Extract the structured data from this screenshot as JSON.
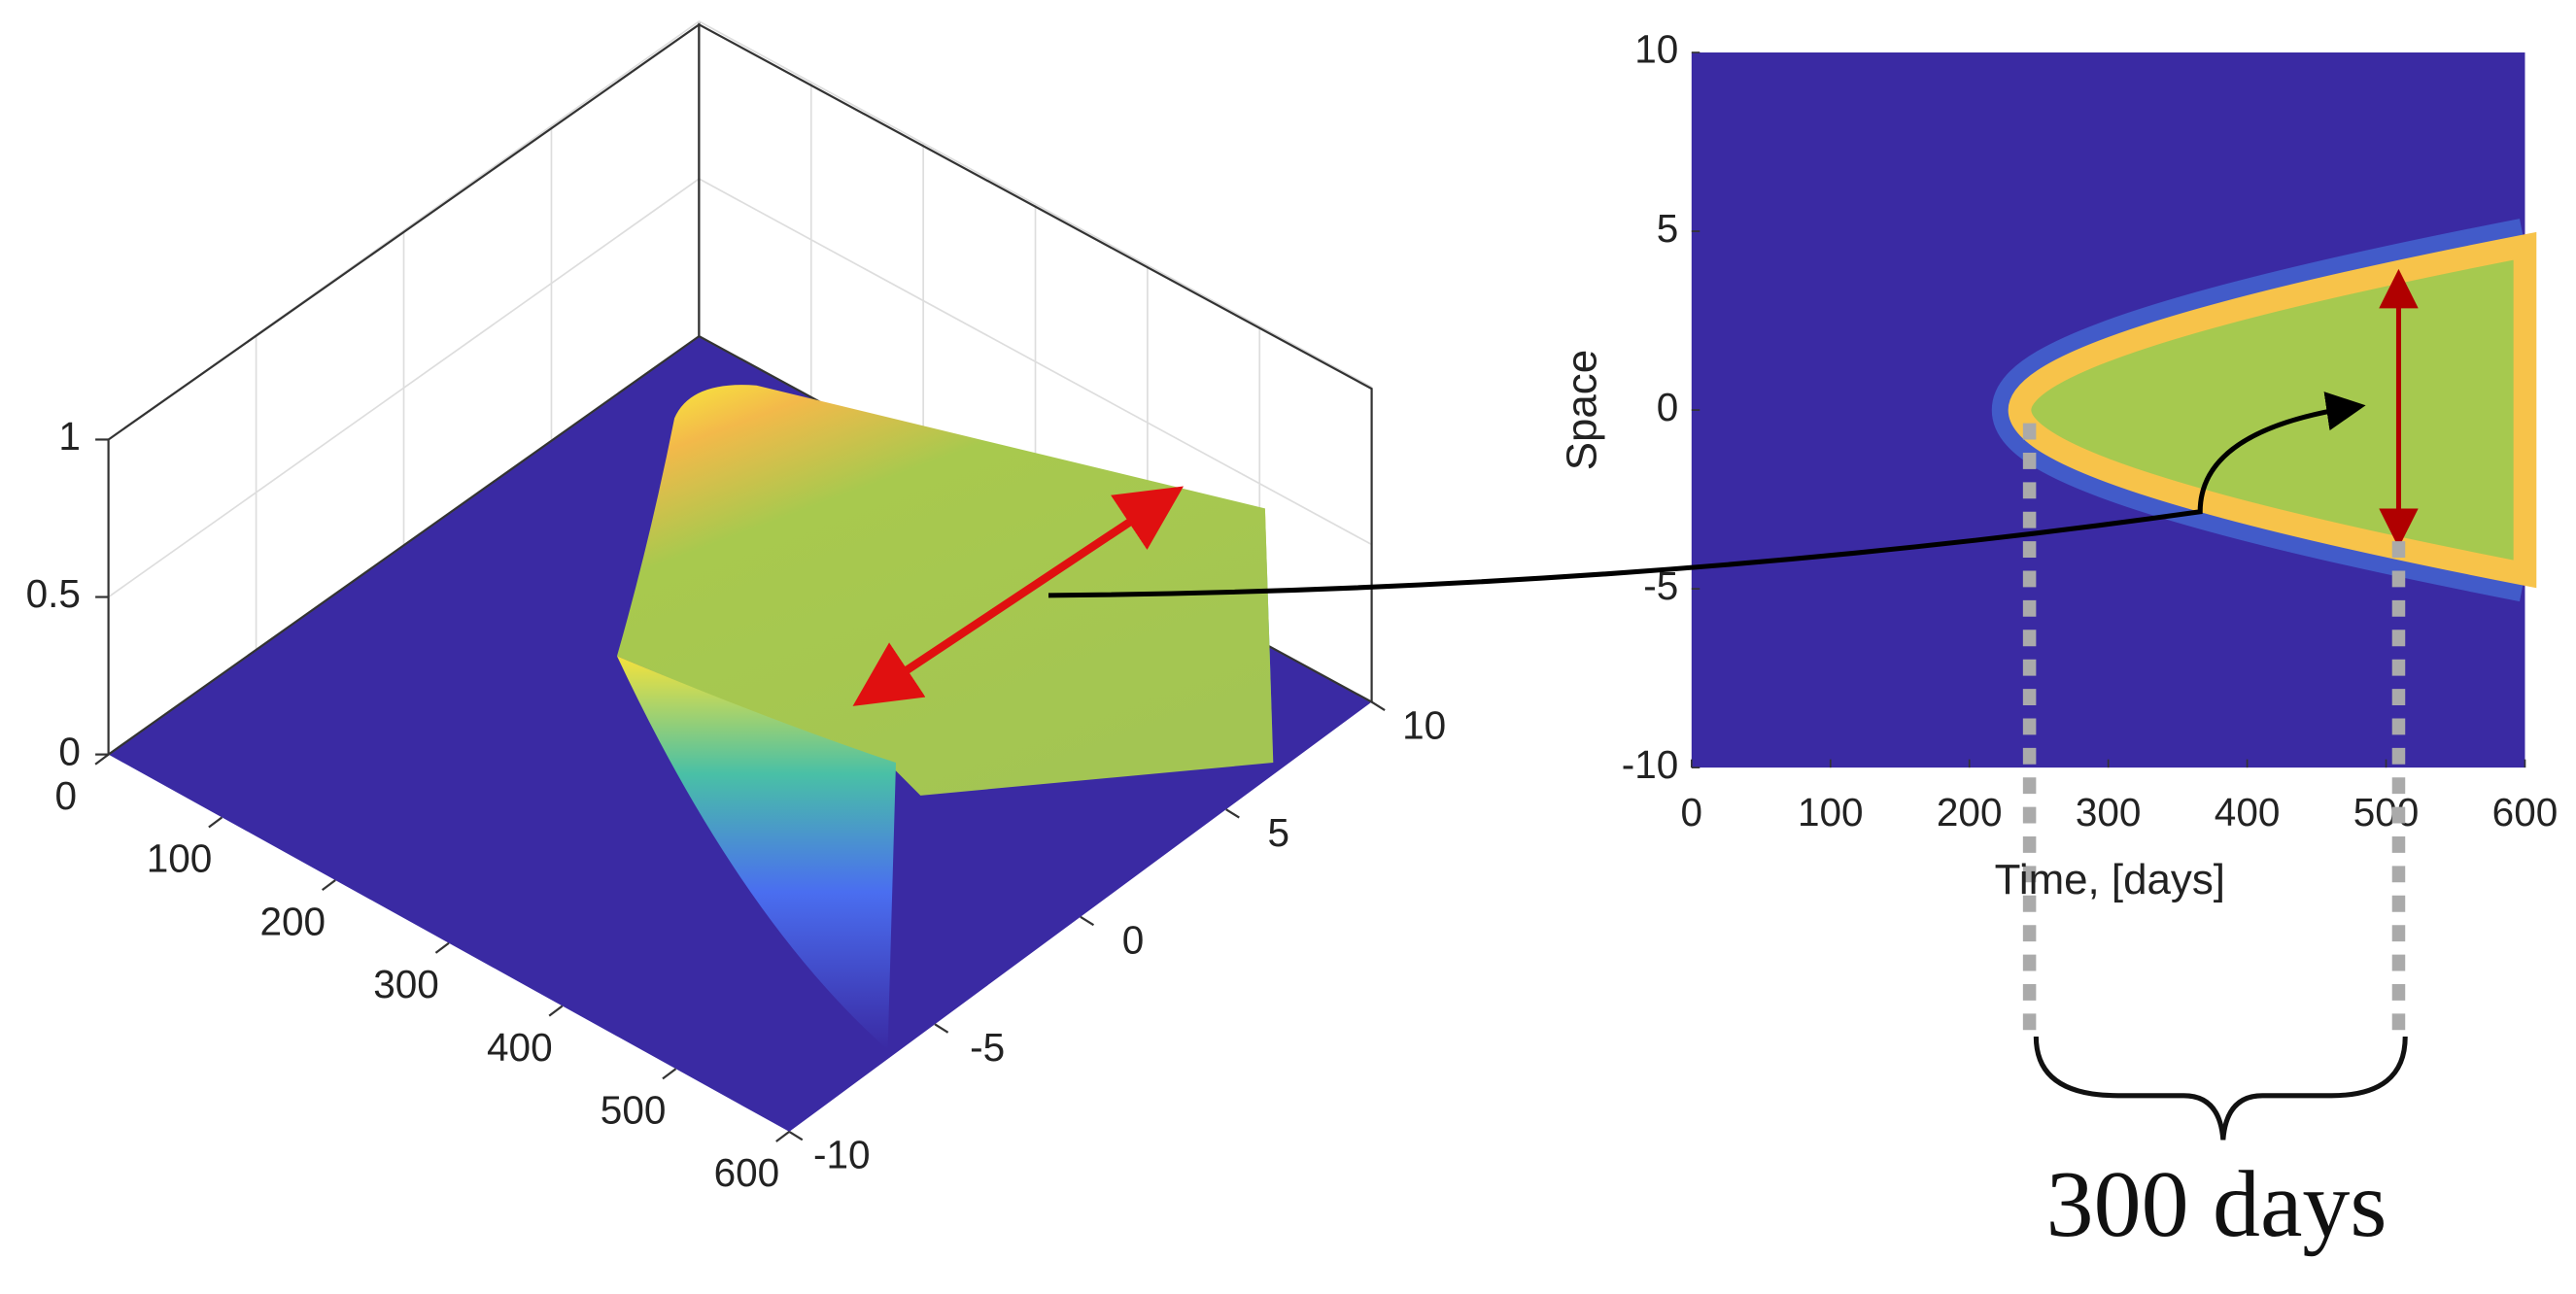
{
  "chart_data": [
    {
      "type": "surface3d",
      "xlim": [
        0,
        600
      ],
      "xticks": [
        0,
        100,
        200,
        300,
        400,
        500,
        600
      ],
      "ylim": [
        -10,
        10
      ],
      "yticks": [
        -10,
        -5,
        0,
        5,
        10
      ],
      "zlim": [
        0,
        1
      ],
      "zticks": [
        0,
        0.5,
        1
      ]
    },
    {
      "type": "heatmap",
      "xlim": [
        0,
        600
      ],
      "xticks": [
        0,
        100,
        200,
        300,
        400,
        500,
        600
      ],
      "ylim": [
        -10,
        10
      ],
      "yticks": [
        -10,
        -5,
        0,
        5,
        10
      ],
      "xlabel": "Time, [days]",
      "ylabel": "Space",
      "annotation": "300 days"
    }
  ]
}
